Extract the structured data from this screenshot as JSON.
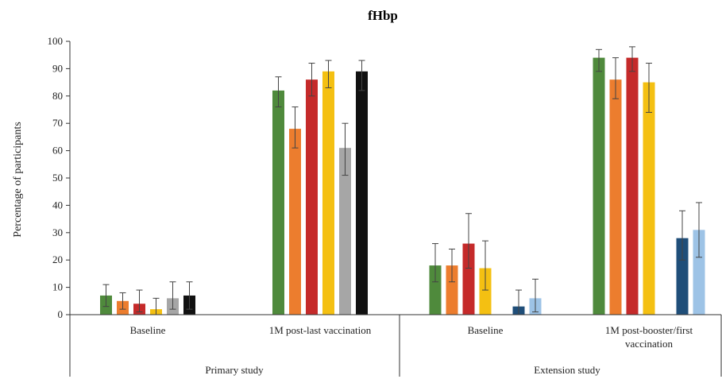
{
  "chart_data": {
    "type": "bar",
    "title": "fHbp",
    "ylabel": "Percentage of participants",
    "xlabel": "",
    "ylim": [
      0,
      100
    ],
    "yticks": [
      0,
      10,
      20,
      30,
      40,
      50,
      60,
      70,
      80,
      90,
      100
    ],
    "grid": false,
    "legend": "none",
    "error_bars": true,
    "groups": [
      {
        "label": "Primary study",
        "categories": [
          {
            "label": "Baseline",
            "bars": [
              {
                "color": "#4f8a3c",
                "value": 7,
                "err_low": 3,
                "err_high": 11
              },
              {
                "color": "#ec7d2e",
                "value": 5,
                "err_low": 2,
                "err_high": 8
              },
              {
                "color": "#c52a2a",
                "value": 4,
                "err_low": 1,
                "err_high": 9
              },
              {
                "color": "#f4c012",
                "value": 2,
                "err_low": 0,
                "err_high": 6
              },
              {
                "color": "#a6a6a6",
                "value": 6,
                "err_low": 2,
                "err_high": 12
              },
              {
                "color": "#111111",
                "value": 7,
                "err_low": 2,
                "err_high": 12
              }
            ]
          },
          {
            "label": "1M post-last vaccination",
            "bars": [
              {
                "color": "#4f8a3c",
                "value": 82,
                "err_low": 76,
                "err_high": 87
              },
              {
                "color": "#ec7d2e",
                "value": 68,
                "err_low": 61,
                "err_high": 76
              },
              {
                "color": "#c52a2a",
                "value": 86,
                "err_low": 80,
                "err_high": 92
              },
              {
                "color": "#f4c012",
                "value": 89,
                "err_low": 83,
                "err_high": 93
              },
              {
                "color": "#a6a6a6",
                "value": 61,
                "err_low": 51,
                "err_high": 70
              },
              {
                "color": "#111111",
                "value": 89,
                "err_low": 82,
                "err_high": 93
              }
            ]
          }
        ]
      },
      {
        "label": "Extension study",
        "categories": [
          {
            "label": "Baseline",
            "bars": [
              {
                "color": "#4f8a3c",
                "value": 18,
                "err_low": 12,
                "err_high": 26
              },
              {
                "color": "#ec7d2e",
                "value": 18,
                "err_low": 12,
                "err_high": 24
              },
              {
                "color": "#c52a2a",
                "value": 26,
                "err_low": 17,
                "err_high": 37
              },
              {
                "color": "#f4c012",
                "value": 17,
                "err_low": 9,
                "err_high": 27
              },
              {
                "color": null,
                "value": null
              },
              {
                "color": "#1f4e79",
                "value": 3,
                "err_low": 0,
                "err_high": 9
              },
              {
                "color": "#9dc3e6",
                "value": 6,
                "err_low": 1,
                "err_high": 13
              }
            ]
          },
          {
            "label": "1M post-booster/first vaccination",
            "bars": [
              {
                "color": "#4f8a3c",
                "value": 94,
                "err_low": 89,
                "err_high": 97
              },
              {
                "color": "#ec7d2e",
                "value": 86,
                "err_low": 79,
                "err_high": 94
              },
              {
                "color": "#c52a2a",
                "value": 94,
                "err_low": 89,
                "err_high": 98
              },
              {
                "color": "#f4c012",
                "value": 85,
                "err_low": 74,
                "err_high": 92
              },
              {
                "color": null,
                "value": null
              },
              {
                "color": "#1f4e79",
                "value": 28,
                "err_low": 20,
                "err_high": 38
              },
              {
                "color": "#9dc3e6",
                "value": 31,
                "err_low": 21,
                "err_high": 41
              }
            ]
          }
        ]
      }
    ]
  }
}
